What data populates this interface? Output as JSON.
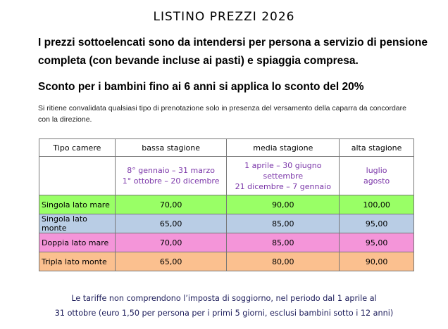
{
  "title": "LISTINO  PREZZI  2026",
  "intro_line1": "I prezzi sottoelencati sono da intendersi per persona a servizio di pensione",
  "intro_line2": "completa (con bevande incluse ai pasti)   e spiaggia compresa.",
  "discount": "Sconto per i bambini fino ai 6 anni si applica lo sconto del 20%",
  "note_line1": "Si ritiene convalidata qualsiasi tipo di prenotazione solo in presenza del versamento della caparra da concordare",
  "note_line2": "con la direzione.",
  "table": {
    "headers": [
      "Tipo camere",
      "bassa stagione",
      "media stagione",
      "alta stagione"
    ],
    "periods": {
      "bassa": [
        "8° gennaio – 31 marzo",
        "1° ottobre – 20 dicembre"
      ],
      "media": [
        "1 aprile – 30 giugno",
        "settembre",
        "21  dicembre – 7 gennaio"
      ],
      "alta": [
        "luglio",
        "agosto"
      ]
    },
    "period_color": "#7a35a8",
    "rows": [
      {
        "name": "Singola lato mare",
        "bassa": "70,00",
        "media": "90,00",
        "alta": "100,00",
        "color": "#99ff66"
      },
      {
        "name": "Singola lato monte",
        "bassa": "65,00",
        "media": "85,00",
        "alta": "95,00",
        "color": "#b9cde5"
      },
      {
        "name": "Doppia lato mare",
        "bassa": "70,00",
        "media": "85,00",
        "alta": "95,00",
        "color": "#f495d9"
      },
      {
        "name": "Tripla lato monte",
        "bassa": "65,00",
        "media": "80,00",
        "alta": "90,00",
        "color": "#fbc08f"
      }
    ]
  },
  "footer_line1": "Le tariffe non comprendono l’imposta di soggiorno, nel periodo dal 1 aprile al",
  "footer_line2": "31 ottobre (euro 1,50 per persona per i primi 5 giorni, esclusi bambini sotto i 12 anni)"
}
